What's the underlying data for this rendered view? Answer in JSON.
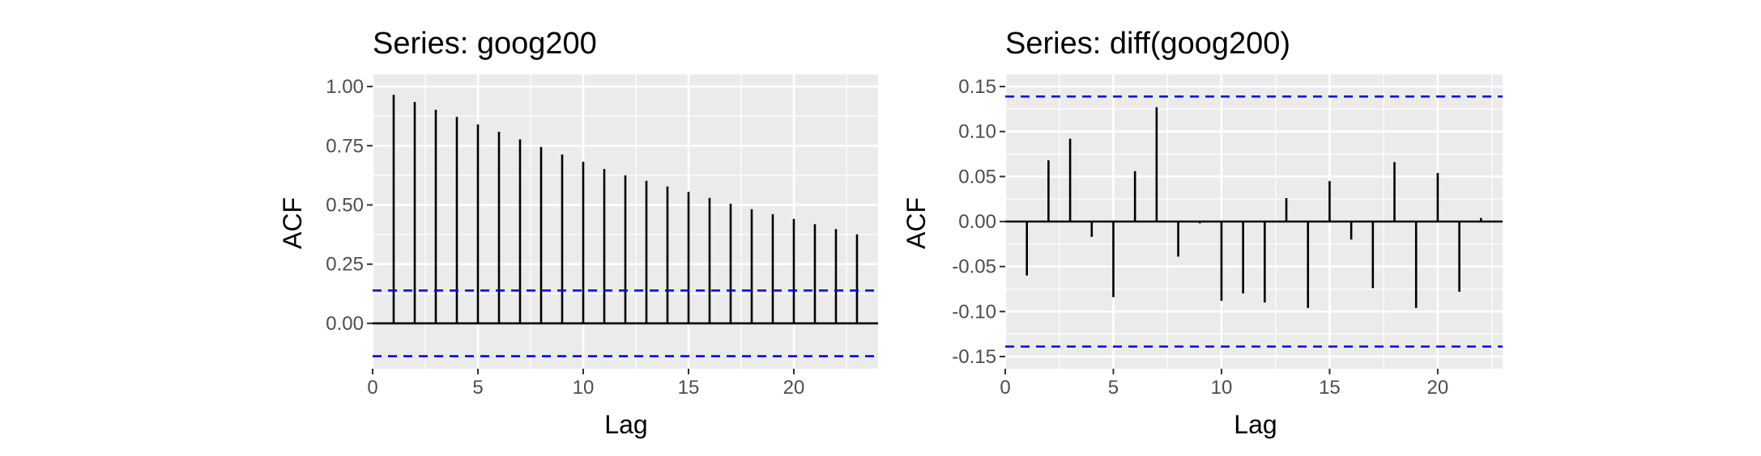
{
  "chart_data": [
    {
      "type": "bar",
      "title": "Series: goog200",
      "xlabel": "Lag",
      "ylabel": "ACF",
      "xlim": [
        0,
        24
      ],
      "ylim": [
        -0.14,
        1.0
      ],
      "x_ticks": [
        0,
        5,
        10,
        15,
        20
      ],
      "x_tick_labels": [
        "0",
        "5",
        "10",
        "15",
        "20"
      ],
      "y_ticks": [
        0,
        0.25,
        0.5,
        0.75,
        1.0
      ],
      "y_tick_labels": [
        "0.00",
        "0.25",
        "0.50",
        "0.75",
        "1.00"
      ],
      "x": [
        1,
        2,
        3,
        4,
        5,
        6,
        7,
        8,
        9,
        10,
        11,
        12,
        13,
        14,
        15,
        16,
        17,
        18,
        19,
        20,
        21,
        22,
        23
      ],
      "values": [
        0.965,
        0.935,
        0.902,
        0.872,
        0.84,
        0.809,
        0.777,
        0.745,
        0.713,
        0.682,
        0.652,
        0.625,
        0.602,
        0.578,
        0.555,
        0.53,
        0.505,
        0.482,
        0.461,
        0.441,
        0.419,
        0.398,
        0.376
      ],
      "confidence_bound": 0.1386,
      "grid": true
    },
    {
      "type": "bar",
      "title": "Series: diff(goog200)",
      "xlabel": "Lag",
      "ylabel": "ACF",
      "xlim": [
        0,
        23
      ],
      "ylim": [
        -0.15,
        0.15
      ],
      "x_ticks": [
        0,
        5,
        10,
        15,
        20
      ],
      "x_tick_labels": [
        "0",
        "5",
        "10",
        "15",
        "20"
      ],
      "y_ticks": [
        -0.15,
        -0.1,
        -0.05,
        0,
        0.05,
        0.1,
        0.15
      ],
      "y_tick_labels": [
        "-0.15",
        "-0.10",
        "-0.05",
        "0.00",
        "0.05",
        "0.10",
        "0.15"
      ],
      "x": [
        1,
        2,
        3,
        4,
        5,
        6,
        7,
        8,
        9,
        10,
        11,
        12,
        13,
        14,
        15,
        16,
        17,
        18,
        19,
        20,
        21,
        22
      ],
      "values": [
        -0.06,
        0.068,
        0.092,
        -0.017,
        -0.084,
        0.056,
        0.127,
        -0.039,
        -0.002,
        -0.088,
        -0.08,
        -0.09,
        0.026,
        -0.096,
        0.045,
        -0.02,
        -0.074,
        0.066,
        -0.096,
        0.054,
        -0.078,
        0.004
      ],
      "confidence_bound": 0.1389,
      "grid": true
    }
  ],
  "colors": {
    "panel_background": "#EBEBEB",
    "grid": "#FFFFFF",
    "bar": "#000000",
    "confidence_line": "#0000FF",
    "tick_text": "#4D4D4D"
  }
}
